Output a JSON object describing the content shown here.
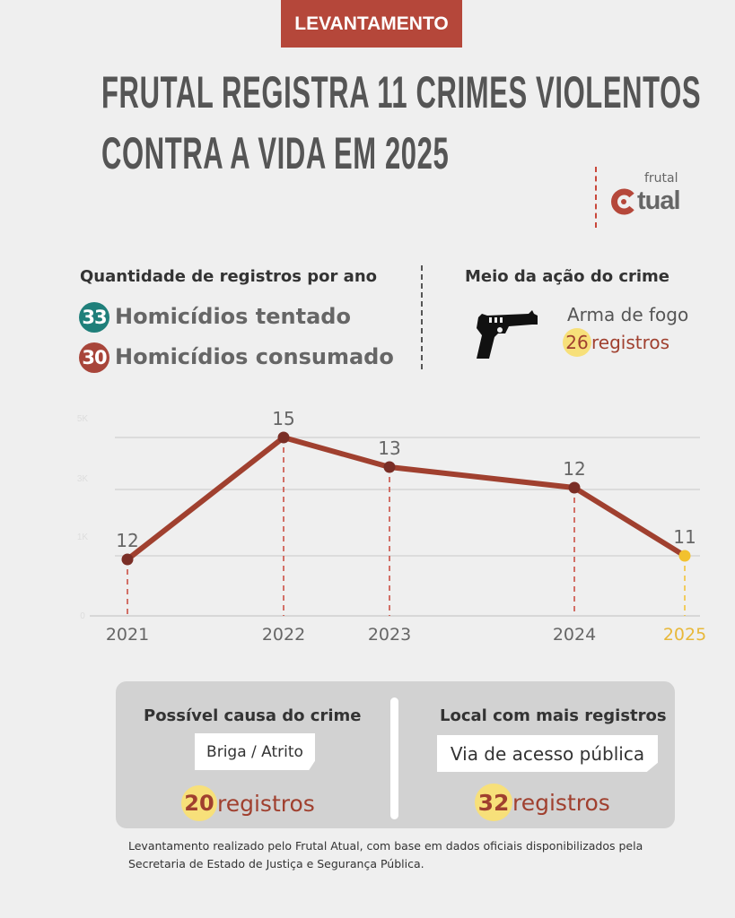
{
  "banner": "LEVANTAMENTO",
  "title": {
    "line1": "FRUTAL REGISTRA 11 CRIMES VIOLENTOS",
    "line2": "CONTRA A VIDA EM 2025"
  },
  "logo": {
    "top": "frutal",
    "main": "Atual",
    "text_visible": "tual"
  },
  "summary": {
    "heading": "Quantidade de registros por ano",
    "items": [
      {
        "count": "33",
        "label": "Homicídios tentado",
        "color": "#1f7f7a"
      },
      {
        "count": "30",
        "label": "Homicídios consumado",
        "color": "#a8453a"
      }
    ]
  },
  "method": {
    "heading": "Meio da ação do crime",
    "icon": "pistol-icon",
    "label": "Arma de fogo",
    "count": "26",
    "unit": "registros"
  },
  "chart_data": {
    "type": "line",
    "categories": [
      "2021",
      "2022",
      "2023",
      "2024",
      "2025"
    ],
    "values": [
      12,
      15,
      13,
      12,
      11
    ],
    "data_labels": [
      "12",
      "15",
      "13",
      "12",
      "11"
    ],
    "y_tick_labels": [
      "0",
      "1K",
      "3K",
      "5K"
    ],
    "grid": true,
    "line_color": "#a0402f",
    "highlight": {
      "category": "2025",
      "color": "#f2c12e"
    }
  },
  "cause": {
    "heading": "Possível causa do crime",
    "value": "Briga / Atrito",
    "count": "20",
    "unit": "registros"
  },
  "place": {
    "heading": "Local com mais registros",
    "value": "Via de acesso pública",
    "count": "32",
    "unit": "registros"
  },
  "footer": "Levantamento realizado pelo Frutal Atual, com base em  dados oficiais disponibilizados pela Secretaria de Estado de Justiça e Segurança Pública."
}
